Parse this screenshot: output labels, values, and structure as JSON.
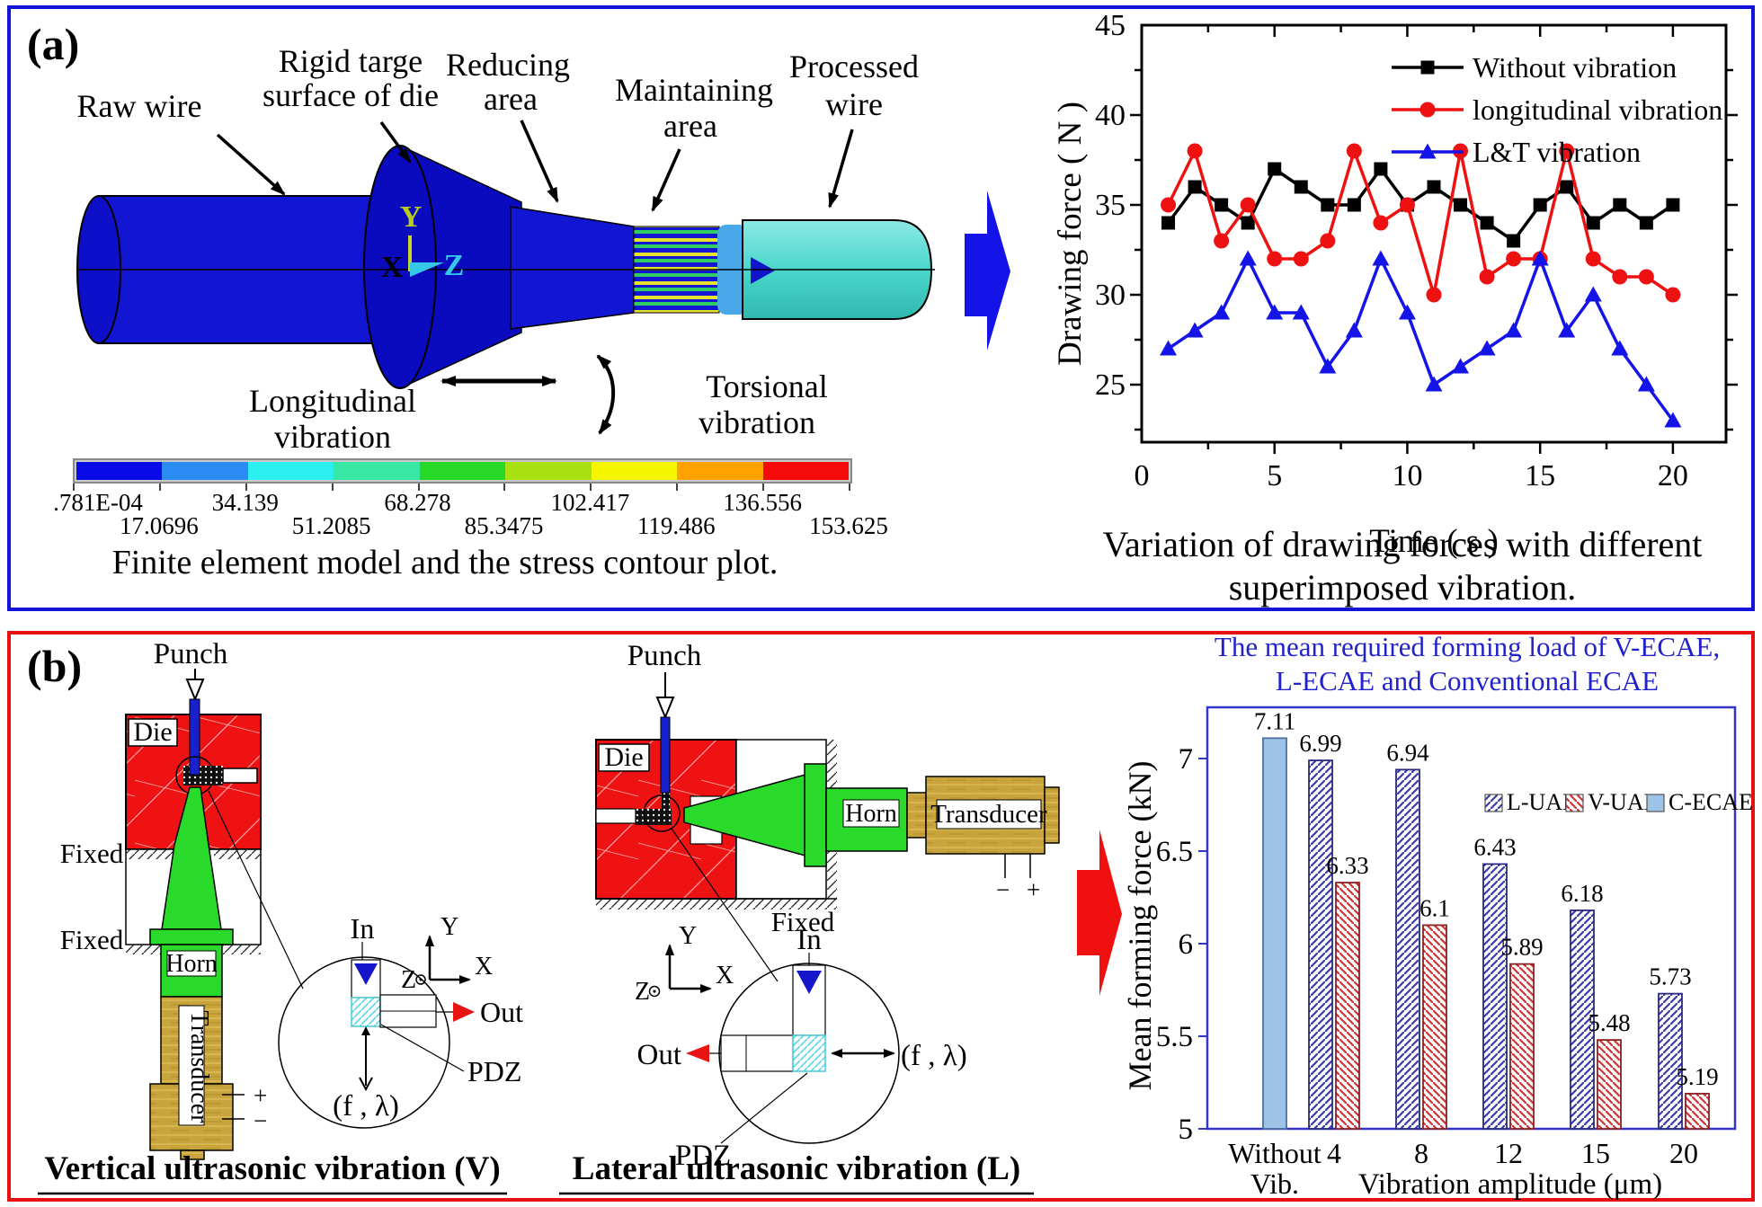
{
  "panel_a": {
    "tag": "(a)",
    "model_labels": {
      "raw_wire": "Raw wire",
      "rigid_l1": "Rigid targe",
      "rigid_l2": "surface of die",
      "reducing_l1": "Reducing",
      "reducing_l2": "area",
      "maintaining_l1": "Maintaining",
      "maintaining_l2": "area",
      "processed_l1": "Processed",
      "processed_l2": "wire",
      "longitudinal_l1": "Longitudinal",
      "longitudinal_l2": "vibration",
      "torsional_l1": "Torsional",
      "torsional_l2": "vibration",
      "axis_x": "X",
      "axis_y": "Y",
      "axis_z": "Z"
    },
    "colorbar": {
      "ticks": [
        ".781E-04",
        "17.0696",
        "34.139",
        "51.2085",
        "68.278",
        "85.3475",
        "102.417",
        "119.486",
        "136.556",
        "153.625"
      ],
      "colors": [
        "#0A0AE8",
        "#2B8CF5",
        "#2BEFEF",
        "#36E8A4",
        "#27D827",
        "#A8E012",
        "#F5F500",
        "#FFA200",
        "#F50A0A"
      ]
    },
    "caption_model": "Finite element model and the stress contour plot.",
    "caption_chart_l1": "Variation of drawing forces with different",
    "caption_chart_l2": "superimposed vibration."
  },
  "panel_b": {
    "tag": "(b)",
    "labels": {
      "punch": "Punch",
      "die": "Die",
      "fixed": "Fixed",
      "horn": "Horn",
      "transducer": "Transducer",
      "in": "In",
      "out": "Out",
      "pdz": "PDZ",
      "f_lambda": "(f , λ)",
      "axis_x": "X",
      "axis_y": "Y",
      "axis_z": "Z",
      "plus": "+",
      "minus": "−"
    },
    "caption_v": "Vertical ultrasonic vibration (V)",
    "caption_l": "Lateral ultrasonic vibration (L)"
  },
  "chart_data": [
    {
      "type": "line",
      "title": "Variation of drawing forces with different superimposed vibration.",
      "xlabel": "Time ( s )",
      "ylabel": "Drawing force ( N )",
      "xlim": [
        0,
        22
      ],
      "ylim": [
        21.5,
        45
      ],
      "xticks": [
        0,
        5,
        10,
        15,
        20
      ],
      "yticks": [
        25,
        30,
        35,
        40,
        45
      ],
      "grid": false,
      "legend_position": "top-right-inside",
      "x": [
        1,
        2,
        3,
        4,
        5,
        6,
        7,
        8,
        9,
        10,
        11,
        12,
        13,
        14,
        15,
        16,
        17,
        18,
        19,
        20
      ],
      "series": [
        {
          "name": "Without vibration",
          "color": "#000000",
          "marker": "square",
          "values": [
            34,
            36,
            35,
            34,
            37,
            36,
            35,
            35,
            37,
            35,
            36,
            35,
            34,
            33,
            35,
            36,
            34,
            35,
            34,
            35
          ]
        },
        {
          "name": "longitudinal vibration",
          "color": "#EE1111",
          "marker": "circle",
          "values": [
            35,
            38,
            33,
            35,
            32,
            32,
            33,
            38,
            34,
            35,
            30,
            38,
            31,
            32,
            32,
            38,
            32,
            31,
            31,
            30
          ]
        },
        {
          "name": "L&T vibration",
          "color": "#1414E8",
          "marker": "triangle",
          "values": [
            27,
            28,
            29,
            32,
            29,
            29,
            26,
            28,
            32,
            29,
            25,
            26,
            27,
            28,
            32,
            28,
            30,
            27,
            25,
            23
          ]
        }
      ]
    },
    {
      "type": "bar",
      "title_lines": [
        "The mean required forming load of V-ECAE,",
        "L-ECAE and Conventional ECAE"
      ],
      "title_color": "#2222CC",
      "xlabel": "Vibration amplitude (μm)",
      "ylabel": "Mean forming force (kN)",
      "ylim": [
        5,
        7.3
      ],
      "yticks": [
        5,
        5.5,
        6,
        6.5,
        7
      ],
      "grid": false,
      "legend_position": "top-right-inside",
      "categories": [
        "Without Vib.",
        "4",
        "8",
        "12",
        "15",
        "20"
      ],
      "series": [
        {
          "name": "L-UAE",
          "style": "hatch-blue",
          "values": [
            null,
            6.99,
            6.94,
            6.43,
            6.18,
            5.73
          ]
        },
        {
          "name": "V-UAE",
          "style": "hatch-red",
          "values": [
            null,
            6.33,
            6.1,
            5.89,
            5.48,
            5.19
          ]
        },
        {
          "name": "C-ECAE",
          "style": "solid-lightblue",
          "color": "#9DC3E6",
          "values": [
            7.11,
            null,
            null,
            null,
            null,
            null
          ]
        }
      ]
    }
  ]
}
